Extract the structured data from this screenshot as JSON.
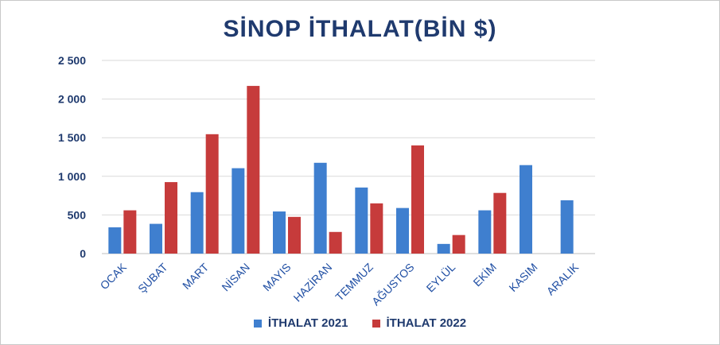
{
  "chart_data": {
    "type": "bar",
    "title": "SİNOP İTHALAT(BİN $)",
    "categories": [
      "OCAK",
      "ŞUBAT",
      "MART",
      "NİSAN",
      "MAYIS",
      "HAZİRAN",
      "TEMMUZ",
      "AĞUSTOS",
      "EYLÜL",
      "EKİM",
      "KASIM",
      "ARALIK"
    ],
    "series": [
      {
        "name": "İTHALAT 2021",
        "color": "#3f7fcf",
        "values": [
          340,
          385,
          795,
          1105,
          545,
          1175,
          855,
          590,
          125,
          560,
          1145,
          690
        ]
      },
      {
        "name": "İTHALAT 2022",
        "color": "#c63b3b",
        "values": [
          560,
          925,
          1545,
          2170,
          475,
          280,
          650,
          1400,
          240,
          785,
          null,
          null
        ]
      }
    ],
    "ylim": [
      0,
      2500
    ],
    "yticks": [
      0,
      500,
      1000,
      1500,
      2000,
      2500
    ],
    "ytick_labels": [
      "0",
      "500",
      "1 000",
      "1 500",
      "2 000",
      "2 500"
    ],
    "grid": true,
    "legend_position": "bottom"
  }
}
